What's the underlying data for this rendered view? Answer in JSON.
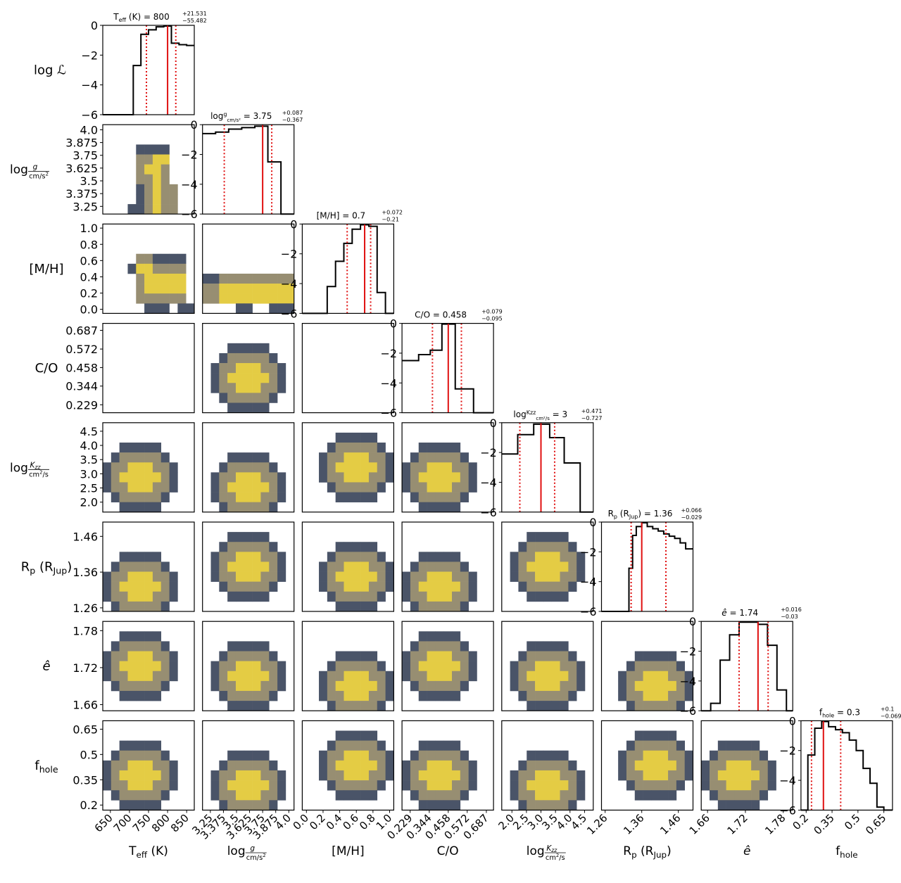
{
  "chart_data": {
    "type": "corner",
    "colors": {
      "line": "#000000",
      "median": "#e01010",
      "level_outer": "#4a5468",
      "level_mid": "#978e72",
      "level_inner": "#e4cc44"
    },
    "params": [
      {
        "label": "Teff",
        "sub": "eff",
        "base": "T",
        "unit": " (K)",
        "lim": [
          630,
          870
        ],
        "ticks": [
          "650",
          "700",
          "750",
          "800",
          "850"
        ],
        "tickvals": [
          650,
          700,
          750,
          800,
          850
        ],
        "title_value": "800",
        "title_plus": "+21.531",
        "title_minus": "−55.482",
        "median": 800,
        "lo": 744.518,
        "hi": 821.531,
        "hist_edges": [
          630,
          650,
          670,
          690,
          710,
          730,
          750,
          770,
          790,
          810,
          830,
          850,
          870
        ],
        "hist_vals": [
          -6,
          -6,
          -6,
          -6,
          -2.7,
          -0.6,
          -0.3,
          -0.1,
          -0.05,
          -1.2,
          -1.3,
          -1.35
        ]
      },
      {
        "label": "log g",
        "lim": [
          3.175,
          4.05
        ],
        "ticks": [
          "3.25",
          "3.375",
          "3.5",
          "3.625",
          "3.75",
          "3.875",
          "4.0"
        ],
        "tickvals": [
          3.25,
          3.375,
          3.5,
          3.625,
          3.75,
          3.875,
          4.0
        ],
        "title_value": "3.75",
        "title_plus": "+0.087",
        "title_minus": "−0.367",
        "median": 3.75,
        "lo": 3.383,
        "hi": 3.837,
        "hist_edges": [
          3.175,
          3.3,
          3.425,
          3.55,
          3.675,
          3.8,
          3.925,
          4.05
        ],
        "hist_vals": [
          -0.6,
          -0.5,
          -0.3,
          -0.2,
          -0.1,
          -2.5,
          -6
        ]
      },
      {
        "label": "[M/H]",
        "lim": [
          -0.05,
          1.05
        ],
        "ticks": [
          "0.0",
          "0.2",
          "0.4",
          "0.6",
          "0.8",
          "1.0"
        ],
        "tickvals": [
          0.0,
          0.2,
          0.4,
          0.6,
          0.8,
          1.0
        ],
        "title_value": "0.7",
        "title_plus": "+0.072",
        "title_minus": "−0.21",
        "median": 0.7,
        "lo": 0.49,
        "hi": 0.772,
        "hist_edges": [
          -0.05,
          0.05,
          0.15,
          0.25,
          0.35,
          0.45,
          0.55,
          0.65,
          0.75,
          0.85,
          0.95,
          1.05
        ],
        "hist_vals": [
          -6,
          -6,
          -6,
          -4.2,
          -2.5,
          -1.3,
          -0.35,
          -0.05,
          -0.15,
          -4.6,
          -6
        ]
      },
      {
        "label": "C/O",
        "lim": [
          0.18,
          0.73
        ],
        "ticks": [
          "0.229",
          "0.344",
          "0.458",
          "0.572",
          "0.687"
        ],
        "tickvals": [
          0.229,
          0.344,
          0.458,
          0.572,
          0.687
        ],
        "title_value": "0.458",
        "title_plus": "+0.079",
        "title_minus": "−0.095",
        "median": 0.458,
        "lo": 0.363,
        "hi": 0.537,
        "hist_edges": [
          0.18,
          0.28,
          0.35,
          0.42,
          0.5,
          0.61,
          0.73
        ],
        "hist_vals": [
          -2.5,
          -2.1,
          -1.8,
          -0.05,
          -4.4,
          -6
        ]
      },
      {
        "label": "log Kzz",
        "lim": [
          1.65,
          4.8
        ],
        "ticks": [
          "2.0",
          "2.5",
          "3.0",
          "3.5",
          "4.0",
          "4.5"
        ],
        "tickvals": [
          2.0,
          2.5,
          3.0,
          3.5,
          4.0,
          4.5
        ],
        "title_value": "3",
        "title_plus": "+0.471",
        "title_minus": "−0.727",
        "median": 3.0,
        "lo": 2.273,
        "hi": 3.471,
        "hist_edges": [
          1.65,
          2.2,
          2.75,
          3.3,
          3.8,
          4.35,
          4.8
        ],
        "hist_vals": [
          -2.1,
          -0.8,
          -0.1,
          -1.0,
          -2.7,
          -6
        ]
      },
      {
        "label": "Rp",
        "lim": [
          1.25,
          1.5
        ],
        "ticks": [
          "1.26",
          "1.36",
          "1.46"
        ],
        "tickvals": [
          1.26,
          1.36,
          1.46
        ],
        "title_value": "1.36",
        "title_plus": "+0.066",
        "title_minus": "−0.029",
        "median": 1.36,
        "lo": 1.331,
        "hi": 1.426,
        "hist_edges": [
          1.25,
          1.3,
          1.325,
          1.335,
          1.345,
          1.36,
          1.375,
          1.39,
          1.405,
          1.42,
          1.435,
          1.45,
          1.465,
          1.48,
          1.5
        ],
        "hist_vals": [
          -6,
          -6,
          -3.1,
          -0.9,
          -0.3,
          -0.05,
          -0.3,
          -0.45,
          -0.6,
          -0.8,
          -0.95,
          -1.1,
          -1.4,
          -1.8
        ]
      },
      {
        "label": "e_hat",
        "lim": [
          1.65,
          1.795
        ],
        "ticks": [
          "1.66",
          "1.72",
          "1.78"
        ],
        "tickvals": [
          1.66,
          1.72,
          1.78
        ],
        "title_value": "1.74",
        "title_plus": "+0.016",
        "title_minus": "−0.03",
        "median": 1.74,
        "lo": 1.71,
        "hi": 1.756,
        "hist_edges": [
          1.65,
          1.665,
          1.68,
          1.695,
          1.71,
          1.725,
          1.74,
          1.755,
          1.77,
          1.785,
          1.795
        ],
        "hist_vals": [
          -6,
          -5.5,
          -2.6,
          -0.9,
          -0.05,
          -0.05,
          -0.2,
          -1.6,
          -4.6,
          -6
        ]
      },
      {
        "label": "f_hole",
        "lim": [
          0.17,
          0.7
        ],
        "ticks": [
          "0.2",
          "0.35",
          "0.5",
          "0.65"
        ],
        "tickvals": [
          0.2,
          0.35,
          0.5,
          0.65
        ],
        "title_value": "0.3",
        "title_plus": "+0.1",
        "title_minus": "−0.069",
        "median": 0.3,
        "lo": 0.231,
        "hi": 0.4,
        "hist_edges": [
          0.17,
          0.21,
          0.25,
          0.29,
          0.33,
          0.37,
          0.41,
          0.45,
          0.49,
          0.53,
          0.57,
          0.61,
          0.65,
          0.7
        ],
        "hist_vals": [
          -6,
          -2.3,
          -0.5,
          -0.05,
          -0.4,
          -0.6,
          -0.8,
          -1.3,
          -2.0,
          -3.2,
          -4.2,
          -5.8,
          -6
        ]
      }
    ],
    "lnL_lim": [
      -6,
      0
    ],
    "lnL_ticks": [
      "0",
      "−2",
      "−4",
      "−6"
    ],
    "lnL_tickvals": [
      0,
      -2,
      -4,
      -6
    ],
    "grid_note": "2D panels: 11x9 cell grid, code 0=empty 1=outer 2=mid 3=inner",
    "panels2d": [
      {
        "row": 1,
        "col": 0,
        "grid": [
          "00000000000",
          "00000000000",
          "00001111000",
          "00002233000",
          "00002332000",
          "00002232000",
          "00001232200",
          "00001232200",
          "00011232200"
        ]
      },
      {
        "row": 2,
        "col": 0,
        "grid": [
          "00000000000",
          "00000000000",
          "00000000000",
          "00002211110",
          "00013322220",
          "00002333330",
          "00002333330",
          "00002222220",
          "00000111011"
        ]
      },
      {
        "row": 2,
        "col": 1,
        "grid": [
          "00000000000",
          "00000000000",
          "00000000000",
          "00000000000",
          "00000000000",
          "11222222222",
          "22333333333",
          "22333333333",
          "00001100111"
        ]
      },
      {
        "row": 3,
        "col": 0,
        "grid": [
          "00000000000",
          "00000000000",
          "00000000000",
          "00000000000",
          "00000000000",
          "00000000000",
          "00000000000",
          "00000000000",
          "00000000000"
        ]
      },
      {
        "row": 3,
        "col": 2,
        "grid": [
          "00000000000",
          "00000000000",
          "00000000000",
          "00000000000",
          "00000000000",
          "00000000000",
          "00000000000",
          "00000000000",
          "00000000000"
        ]
      }
    ]
  },
  "rows_labels": [
    "log 𝓛",
    "log g/cm/s²",
    "[M/H]",
    "C/O",
    "log Kzz/cm²/s",
    "Rp (RJup)",
    "ê",
    "fhole"
  ],
  "x_labels": [
    "Teff (K)",
    "log g/cm/s²",
    "[M/H]",
    "C/O",
    "log Kzz/cm²/s",
    "Rp (RJup)",
    "ê",
    "fhole"
  ]
}
